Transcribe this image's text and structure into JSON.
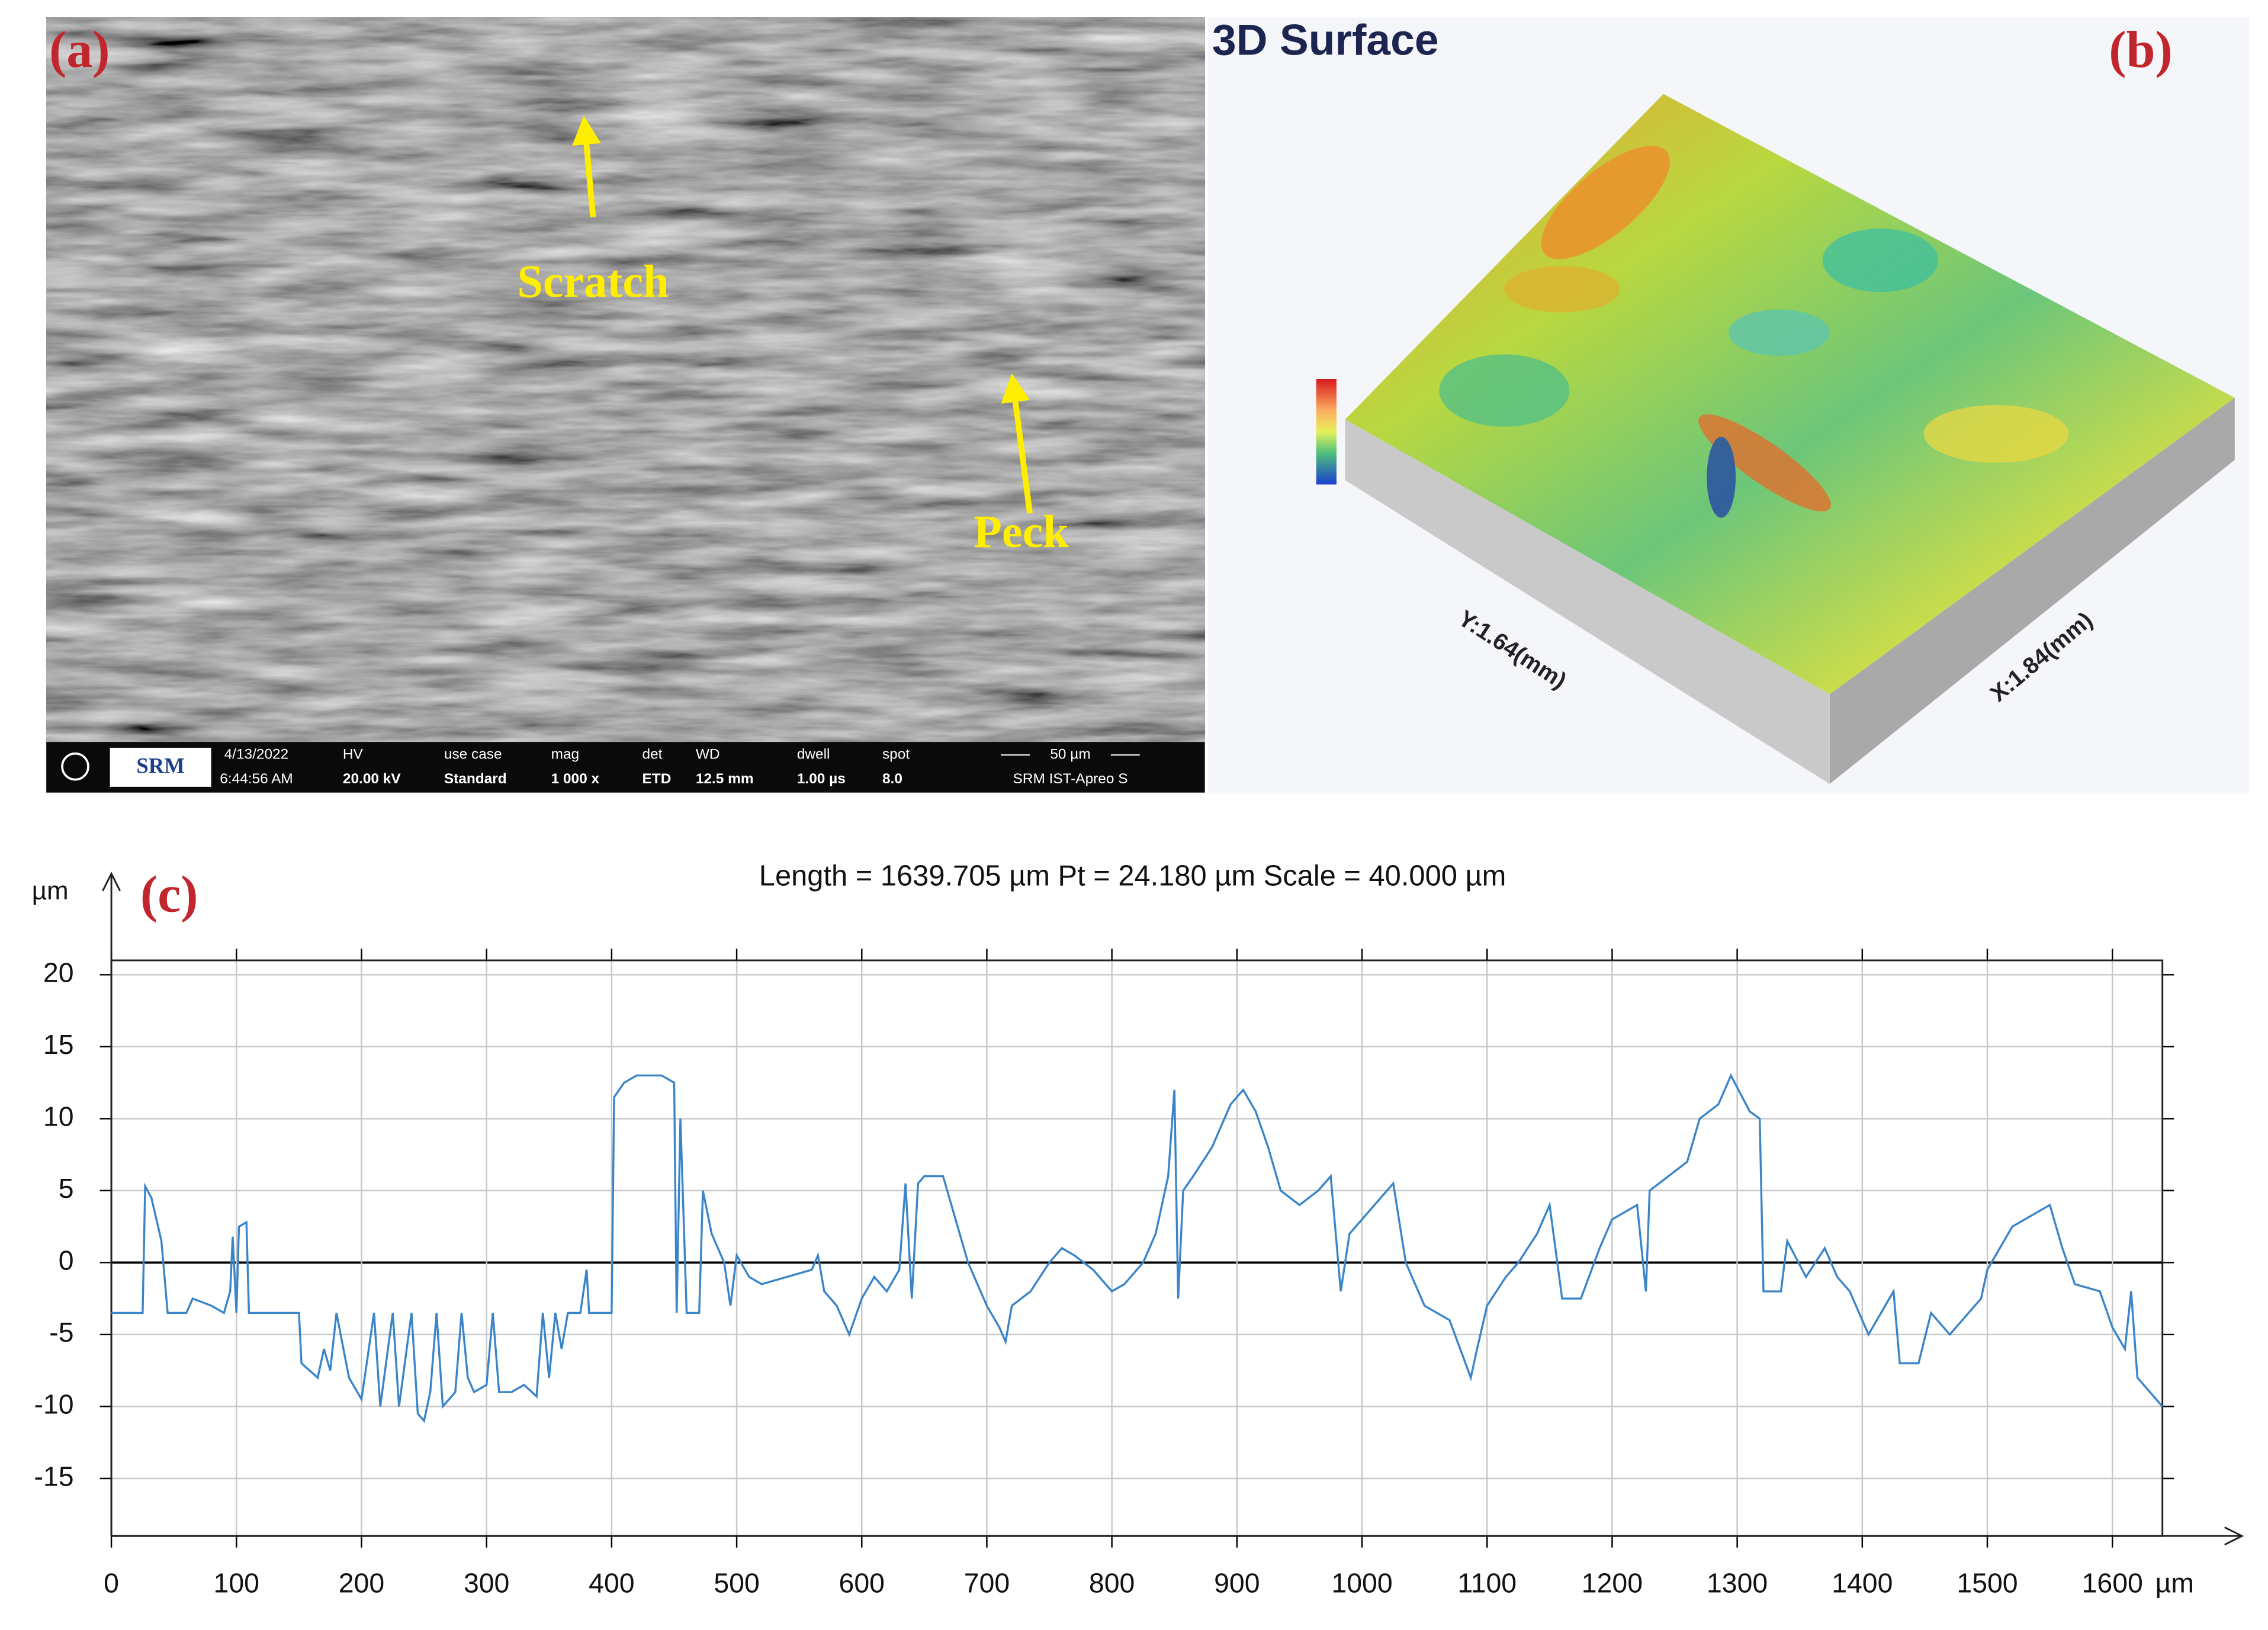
{
  "panel_a": {
    "label": "(a)",
    "annotations": [
      "Scratch",
      "Peck"
    ],
    "logo": "SRM",
    "info_bar": [
      "4/13/2022",
      "6:44:56 AM",
      "HV",
      "20.00 kV",
      "use case",
      "Standard",
      "mag",
      "1 000 x",
      "det",
      "ETD",
      "WD",
      "12.5 mm",
      "dwell",
      "1.00 µs",
      "spot",
      "8.0",
      "50 µm",
      "SRM IST-Apreo S"
    ]
  },
  "panel_b": {
    "title": "3D Surface",
    "label": "(b)",
    "y_axis": "Y:1.64(mm)",
    "x_axis": "X:1.84(mm)"
  },
  "chart_data": {
    "type": "line",
    "label": "(c)",
    "title": "Length = 1639.705 µm  Pt = 24.180 µm  Scale = 40.000 µm",
    "y_label": "µm",
    "x_label": "µm",
    "color": "#3a85c8",
    "grid": true,
    "xlim": [
      0,
      1640
    ],
    "ylim": [
      -19,
      21
    ],
    "xticks": [
      0,
      100,
      200,
      300,
      400,
      500,
      600,
      700,
      800,
      900,
      1000,
      1100,
      1200,
      1300,
      1400,
      1500,
      1600
    ],
    "yticks": [
      20,
      15,
      10,
      5,
      0,
      -5,
      -10,
      -15
    ],
    "x": [
      0,
      25,
      27,
      32,
      40,
      45,
      60,
      65,
      80,
      90,
      95,
      97,
      100,
      102,
      108,
      110,
      150,
      152,
      165,
      170,
      175,
      180,
      190,
      200,
      210,
      215,
      225,
      230,
      240,
      245,
      250,
      255,
      260,
      265,
      275,
      280,
      285,
      290,
      300,
      305,
      310,
      320,
      330,
      340,
      345,
      350,
      355,
      360,
      365,
      375,
      380,
      382,
      400,
      402,
      410,
      420,
      440,
      450,
      452,
      455,
      460,
      470,
      473,
      480,
      490,
      495,
      500,
      510,
      520,
      540,
      560,
      565,
      570,
      580,
      590,
      600,
      610,
      620,
      630,
      635,
      640,
      645,
      650,
      665,
      675,
      685,
      700,
      710,
      715,
      720,
      735,
      750,
      760,
      770,
      785,
      800,
      810,
      825,
      835,
      845,
      850,
      853,
      857,
      865,
      880,
      895,
      905,
      915,
      925,
      935,
      950,
      965,
      975,
      983,
      990,
      1000,
      1015,
      1025,
      1035,
      1050,
      1070,
      1087,
      1092,
      1100,
      1115,
      1125,
      1140,
      1150,
      1160,
      1175,
      1190,
      1200,
      1220,
      1227,
      1230,
      1245,
      1260,
      1270,
      1285,
      1295,
      1310,
      1318,
      1321,
      1335,
      1340,
      1355,
      1370,
      1380,
      1390,
      1405,
      1415,
      1425,
      1430,
      1445,
      1455,
      1470,
      1480,
      1495,
      1500,
      1520,
      1530,
      1550,
      1560,
      1570,
      1590,
      1600,
      1610,
      1615,
      1620,
      1630,
      1640
    ],
    "values": [
      -3.5,
      -3.5,
      5.3,
      4.5,
      1.5,
      -3.5,
      -3.5,
      -2.5,
      -3,
      -3.5,
      -2,
      1.8,
      -3.5,
      2.5,
      2.8,
      -3.5,
      -3.5,
      -7,
      -8,
      -6,
      -7.5,
      -3.5,
      -8,
      -9.5,
      -3.5,
      -10,
      -3.5,
      -10,
      -3.5,
      -10.5,
      -11,
      -9,
      -3.5,
      -10,
      -9,
      -3.5,
      -8,
      -9,
      -8.5,
      -3.5,
      -9,
      -9,
      -8.5,
      -9.3,
      -3.5,
      -8,
      -3.5,
      -6,
      -3.5,
      -3.5,
      -0.5,
      -3.5,
      -3.5,
      11.5,
      12.5,
      13,
      13,
      12.5,
      -3.5,
      10,
      -3.5,
      -3.5,
      5,
      2,
      0,
      -3,
      0.5,
      -1,
      -1.5,
      -1,
      -0.5,
      0.5,
      -2,
      -3,
      -5,
      -2.5,
      -1,
      -2,
      -0.5,
      5.5,
      -2.5,
      5.5,
      6,
      6,
      3,
      0,
      -3,
      -4.5,
      -5.5,
      -3,
      -2,
      0,
      1,
      0.5,
      -0.5,
      -2,
      -1.5,
      0,
      2,
      6,
      12,
      -2.5,
      5,
      6,
      8,
      11,
      12,
      10.5,
      8,
      5,
      4,
      5,
      6,
      -2,
      2,
      3,
      4.5,
      5.5,
      0,
      -3,
      -4,
      -8,
      -6,
      -3,
      -1,
      0,
      2,
      4,
      -2.5,
      -2.5,
      1,
      3,
      4,
      -2,
      5,
      6,
      7,
      10,
      11,
      13,
      10.5,
      10,
      -2,
      -2,
      1.5,
      -1,
      1,
      -1,
      -2,
      -5,
      -3.5,
      -2,
      -7,
      -7,
      -3.5,
      -5,
      -4,
      -2.5,
      -0.5,
      2.5,
      3,
      4,
      1,
      -1.5,
      -2,
      -4.5,
      -6,
      -2,
      -8,
      -9,
      -10
    ]
  }
}
